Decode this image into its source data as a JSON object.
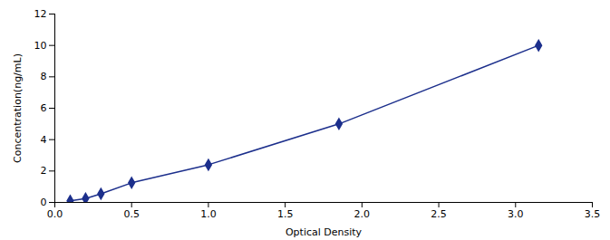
{
  "chart_data": {
    "type": "line",
    "x": [
      0.1,
      0.2,
      0.3,
      0.5,
      1.0,
      1.85,
      3.15
    ],
    "values": [
      0.1,
      0.25,
      0.55,
      1.25,
      2.4,
      5.0,
      10.0
    ],
    "yerr": [
      0.05,
      0.05,
      0.05,
      0.05,
      0.06,
      0.125,
      0.25
    ],
    "color": "#1c2f8c",
    "marker": "diamond",
    "line_style": "solid",
    "xlabel": "Optical Density",
    "ylabel": "Concentration(ng/mL)",
    "xlim": [
      0,
      3.5
    ],
    "ylim": [
      0,
      12
    ],
    "xticks": [
      {
        "value": 0,
        "label": "0.0"
      },
      {
        "value": 0.5,
        "label": "0.5"
      },
      {
        "value": 1.0,
        "label": "1.0"
      },
      {
        "value": 1.5,
        "label": "1.5"
      },
      {
        "value": 2.0,
        "label": "2.0"
      },
      {
        "value": 2.5,
        "label": "2.5"
      },
      {
        "value": 3.0,
        "label": "3.0"
      },
      {
        "value": 3.5,
        "label": "3.5"
      }
    ],
    "yticks": [
      0,
      2,
      4,
      6,
      8,
      10,
      12
    ],
    "grid": false
  }
}
